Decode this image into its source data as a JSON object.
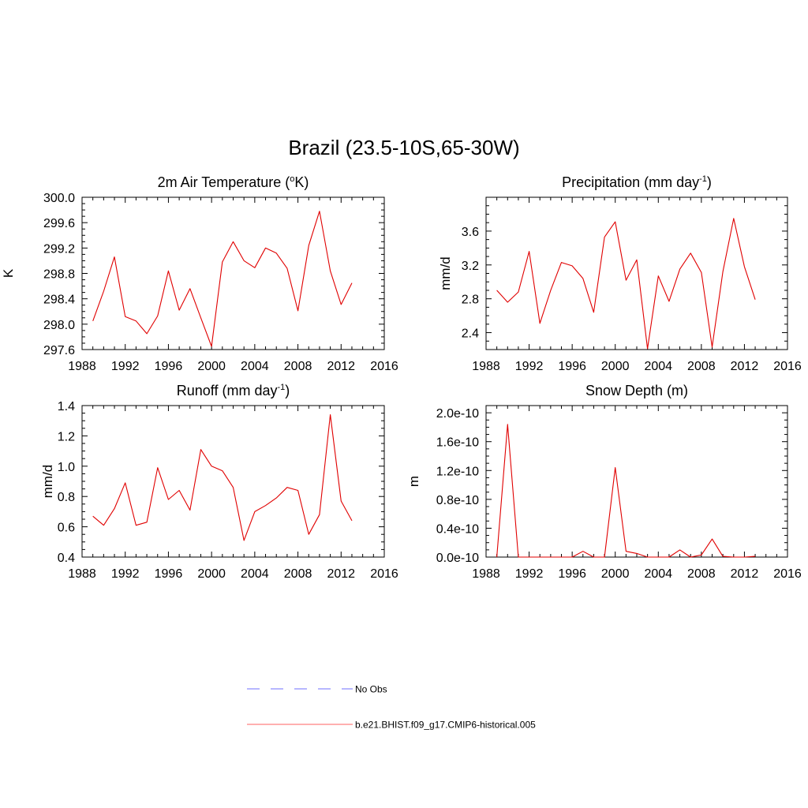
{
  "figure_title": "Brazil (23.5-10S,65-30W)",
  "colors": {
    "model_line": "#e00000",
    "obs_line": "#8c8cff",
    "axis": "#000000"
  },
  "legend": {
    "entries": [
      {
        "label": "No Obs",
        "style": "dashed",
        "color": "#8c8cff"
      },
      {
        "label": "b.e21.BHIST.f09_g17.CMIP6-historical.005",
        "style": "solid",
        "color": "#ff8080"
      }
    ]
  },
  "chart_data": [
    {
      "type": "line",
      "title_main": "2m Air Temperature (",
      "title_sup": "o",
      "title_end": "K)",
      "ylabel": "K",
      "xlim": [
        1988,
        2016
      ],
      "ylim": [
        297.6,
        300.0
      ],
      "xticks": [
        1988,
        1992,
        1996,
        2000,
        2004,
        2008,
        2012,
        2016
      ],
      "yticks": [
        297.6,
        298.0,
        298.4,
        298.8,
        299.2,
        299.6,
        300.0
      ],
      "ytick_labels": [
        "297.6",
        "298.0",
        "298.4",
        "298.8",
        "299.2",
        "299.6",
        "300.0"
      ],
      "x": [
        1989,
        1990,
        1991,
        1992,
        1993,
        1994,
        1995,
        1996,
        1997,
        1998,
        1999,
        2000,
        2001,
        2002,
        2003,
        2004,
        2005,
        2006,
        2007,
        2008,
        2009,
        2010,
        2011,
        2012,
        2013
      ],
      "values": [
        298.05,
        298.52,
        299.06,
        298.12,
        298.05,
        297.85,
        298.13,
        298.84,
        298.22,
        298.56,
        298.1,
        297.65,
        298.98,
        299.3,
        299.0,
        298.89,
        299.2,
        299.12,
        298.88,
        298.21,
        299.24,
        299.78,
        298.84,
        298.31,
        298.65
      ]
    },
    {
      "type": "line",
      "title_main": "Precipitation (mm day",
      "title_sup": "-1",
      "title_end": ")",
      "ylabel": "mm/d",
      "xlim": [
        1988,
        2016
      ],
      "ylim": [
        2.2,
        4.0
      ],
      "xticks": [
        1988,
        1992,
        1996,
        2000,
        2004,
        2008,
        2012,
        2016
      ],
      "yticks": [
        2.4,
        2.8,
        3.2,
        3.6
      ],
      "ytick_labels": [
        "2.4",
        "2.8",
        "3.2",
        "3.6"
      ],
      "x": [
        1989,
        1990,
        1991,
        1992,
        1993,
        1994,
        1995,
        1996,
        1997,
        1998,
        1999,
        2000,
        2001,
        2002,
        2003,
        2004,
        2005,
        2006,
        2007,
        2008,
        2009,
        2010,
        2011,
        2012,
        2013
      ],
      "values": [
        2.9,
        2.76,
        2.88,
        3.36,
        2.51,
        2.9,
        3.23,
        3.19,
        3.04,
        2.64,
        3.53,
        3.71,
        3.02,
        3.26,
        2.21,
        3.07,
        2.77,
        3.15,
        3.34,
        3.11,
        2.23,
        3.12,
        3.75,
        3.18,
        2.79
      ]
    },
    {
      "type": "line",
      "title_main": "Runoff (mm day",
      "title_sup": "-1",
      "title_end": ")",
      "ylabel": "mm/d",
      "xlim": [
        1988,
        2016
      ],
      "ylim": [
        0.4,
        1.4
      ],
      "xticks": [
        1988,
        1992,
        1996,
        2000,
        2004,
        2008,
        2012,
        2016
      ],
      "yticks": [
        0.4,
        0.6,
        0.8,
        1.0,
        1.2,
        1.4
      ],
      "ytick_labels": [
        "0.4",
        "0.6",
        "0.8",
        "1.0",
        "1.2",
        "1.4"
      ],
      "x": [
        1989,
        1990,
        1991,
        1992,
        1993,
        1994,
        1995,
        1996,
        1997,
        1998,
        1999,
        2000,
        2001,
        2002,
        2003,
        2004,
        2005,
        2006,
        2007,
        2008,
        2009,
        2010,
        2011,
        2012,
        2013
      ],
      "values": [
        0.67,
        0.61,
        0.72,
        0.89,
        0.61,
        0.63,
        0.99,
        0.78,
        0.84,
        0.71,
        1.11,
        1.0,
        0.97,
        0.86,
        0.51,
        0.7,
        0.74,
        0.79,
        0.86,
        0.84,
        0.55,
        0.68,
        1.34,
        0.77,
        0.64
      ]
    },
    {
      "type": "line",
      "title_main": "Snow Depth (m)",
      "title_sup": "",
      "title_end": "",
      "ylabel": "m",
      "xlim": [
        1988,
        2016
      ],
      "ylim": [
        0.0,
        2.1e-10
      ],
      "xticks": [
        1988,
        1992,
        1996,
        2000,
        2004,
        2008,
        2012,
        2016
      ],
      "yticks": [
        0.0,
        4e-11,
        8e-11,
        1.2e-10,
        1.6e-10,
        2e-10
      ],
      "ytick_labels": [
        "0.0e-10",
        "0.4e-10",
        "0.8e-10",
        "1.2e-10",
        "1.6e-10",
        "2.0e-10"
      ],
      "x": [
        1989,
        1990,
        1991,
        1992,
        1993,
        1994,
        1995,
        1996,
        1997,
        1998,
        1999,
        2000,
        2001,
        2002,
        2003,
        2004,
        2005,
        2006,
        2007,
        2008,
        2009,
        2010,
        2011,
        2012,
        2013
      ],
      "values": [
        0.0,
        1.84e-10,
        0.0,
        0.0,
        0.0,
        0.0,
        0.0,
        0.0,
        8e-12,
        0.0,
        0.0,
        1.24e-10,
        8e-12,
        5e-12,
        0.0,
        0.0,
        0.0,
        1e-11,
        0.0,
        3e-12,
        2.5e-11,
        1e-12,
        0.0,
        0.0,
        1e-12
      ]
    }
  ]
}
